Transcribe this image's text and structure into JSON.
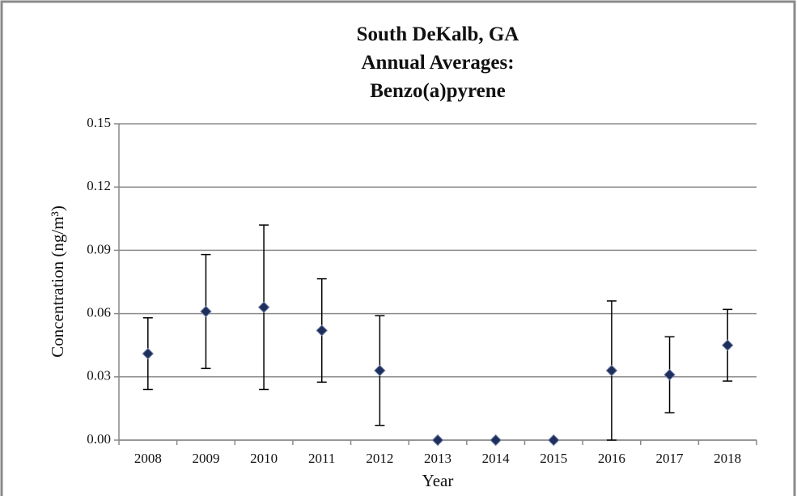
{
  "chart_data": {
    "type": "scatter",
    "title": [
      "South DeKalb, GA",
      "Annual Averages:",
      "Benzo(a)pyrene"
    ],
    "x_label": "Year",
    "y_label": "Concentration (ng/m³)",
    "categories": [
      "2008",
      "2009",
      "2010",
      "2011",
      "2012",
      "2013",
      "2014",
      "2015",
      "2016",
      "2017",
      "2018"
    ],
    "values": [
      0.041,
      0.061,
      0.063,
      0.052,
      0.033,
      0,
      0,
      0,
      0.033,
      0.031,
      0.045
    ],
    "errors": [
      0.017,
      0.027,
      0.039,
      0.0245,
      0.026,
      null,
      null,
      null,
      0.033,
      0.018,
      0.017
    ],
    "color": "#1f2f5c",
    "ylim": [
      0,
      0.15
    ],
    "yticks": [
      {
        "value": 0,
        "label": "0.00"
      },
      0.03,
      0.06,
      0.09,
      0.12,
      0.15
    ],
    "grid": true
  }
}
